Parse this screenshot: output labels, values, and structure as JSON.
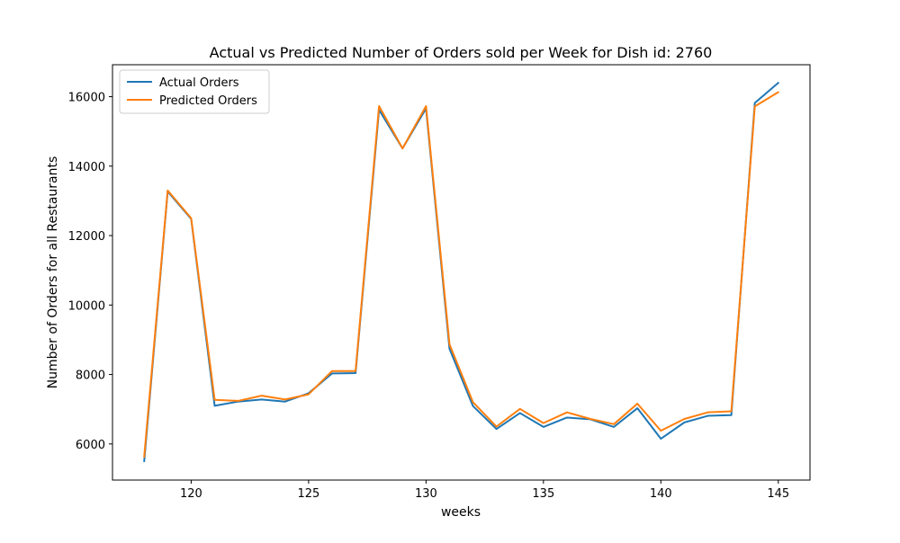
{
  "chart_data": {
    "type": "line",
    "title": "Actual vs Predicted Number of Orders sold per Week for Dish id: 2760",
    "xlabel": "weeks",
    "ylabel": "Number of Orders for all Restaurants",
    "xlim": [
      116.65,
      146.35
    ],
    "ylim": [
      4960,
      16920
    ],
    "x_ticks": [
      120,
      125,
      130,
      135,
      140,
      145
    ],
    "y_ticks": [
      6000,
      8000,
      10000,
      12000,
      14000,
      16000
    ],
    "grid": false,
    "legend_position": "upper left",
    "x": [
      118,
      119,
      120,
      121,
      122,
      123,
      124,
      125,
      126,
      127,
      128,
      129,
      130,
      131,
      132,
      133,
      134,
      135,
      136,
      137,
      138,
      139,
      140,
      141,
      142,
      143,
      144,
      145
    ],
    "series": [
      {
        "name": "Actual Orders",
        "color": "#1f77b4",
        "values": [
          5500,
          13270,
          12480,
          7100,
          7220,
          7280,
          7220,
          7460,
          8030,
          8040,
          15620,
          14510,
          15660,
          8740,
          7090,
          6430,
          6890,
          6490,
          6760,
          6710,
          6490,
          7030,
          6150,
          6620,
          6810,
          6830,
          15820,
          16400
        ]
      },
      {
        "name": "Predicted Orders",
        "color": "#ff7f0e",
        "values": [
          5630,
          13300,
          12500,
          7270,
          7240,
          7390,
          7280,
          7430,
          8100,
          8100,
          15730,
          14510,
          15730,
          8870,
          7200,
          6500,
          7010,
          6600,
          6910,
          6720,
          6570,
          7160,
          6380,
          6720,
          6910,
          6940,
          15720,
          16130
        ]
      }
    ]
  }
}
